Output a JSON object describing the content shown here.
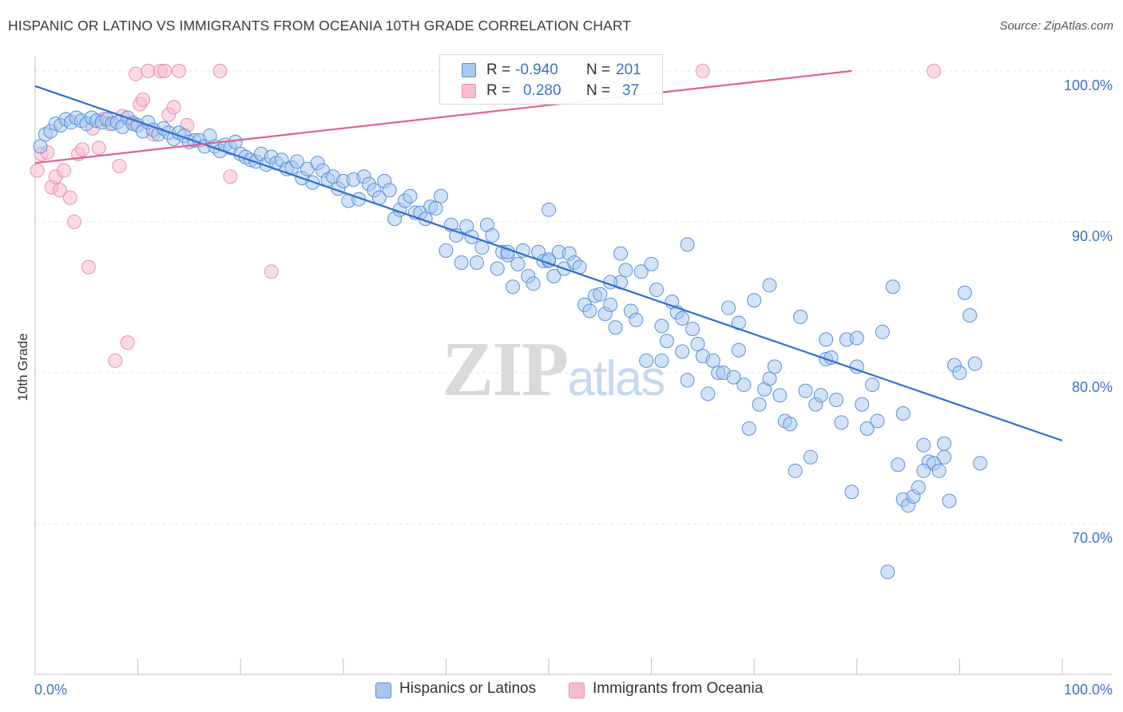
{
  "header": {
    "title": "HISPANIC OR LATINO VS IMMIGRANTS FROM OCEANIA 10TH GRADE CORRELATION CHART",
    "source": "Source: ZipAtlas.com"
  },
  "watermark": {
    "zip": "ZIP",
    "atlas": "atlas"
  },
  "legend": {
    "rows": [
      {
        "r_label": "R =",
        "r_value": "-0.940",
        "n_label": "N =",
        "n_value": "201",
        "color": "#a8c8f0"
      },
      {
        "r_label": "R =",
        "r_value": "0.280",
        "n_label": "N =",
        "n_value": "37",
        "color": "#f8bcd0"
      }
    ]
  },
  "bottom_legend": {
    "series1": "Hispanics or Latinos",
    "series2": "Immigrants from Oceania"
  },
  "colors": {
    "blue_fill": "#a8c8f0",
    "blue_stroke": "#5a90d8",
    "blue_line": "#2f6fd0",
    "pink_fill": "#f8bcd0",
    "pink_stroke": "#e890b0",
    "pink_line": "#e0628e",
    "axis_text": "#3b72c4",
    "grid": "#e6e6e6"
  },
  "chart_data": {
    "type": "scatter",
    "title": "HISPANIC OR LATINO VS IMMIGRANTS FROM OCEANIA 10TH GRADE CORRELATION CHART",
    "xlabel": "",
    "ylabel": "10th Grade",
    "xlim": [
      0,
      100
    ],
    "ylim": [
      60,
      101
    ],
    "x_tick_labels": [
      "0.0%",
      "100.0%"
    ],
    "y_ticks": [
      70,
      80,
      90,
      100
    ],
    "y_tick_labels": [
      "70.0%",
      "80.0%",
      "90.0%",
      "100.0%"
    ],
    "grid": "on",
    "legend_position": "top-center",
    "series": [
      {
        "name": "Hispanics or Latinos",
        "r": -0.94,
        "n": 201,
        "trend": {
          "x": [
            0,
            100
          ],
          "y": [
            99.0,
            75.5
          ]
        },
        "points": [
          [
            0.5,
            95.0
          ],
          [
            1.0,
            95.8
          ],
          [
            1.5,
            96.0
          ],
          [
            2.0,
            96.5
          ],
          [
            2.5,
            96.4
          ],
          [
            3.0,
            96.8
          ],
          [
            3.5,
            96.6
          ],
          [
            4.0,
            96.9
          ],
          [
            4.5,
            96.7
          ],
          [
            5.0,
            96.5
          ],
          [
            5.5,
            96.9
          ],
          [
            6.0,
            96.7
          ],
          [
            6.5,
            96.6
          ],
          [
            7.0,
            96.8
          ],
          [
            7.5,
            96.5
          ],
          [
            8.0,
            96.6
          ],
          [
            8.5,
            96.3
          ],
          [
            9.0,
            96.9
          ],
          [
            9.5,
            96.5
          ],
          [
            10.0,
            96.4
          ],
          [
            10.5,
            96.0
          ],
          [
            11.0,
            96.6
          ],
          [
            11.5,
            96.1
          ],
          [
            12.0,
            95.8
          ],
          [
            12.5,
            96.2
          ],
          [
            13.0,
            95.9
          ],
          [
            13.5,
            95.5
          ],
          [
            14.0,
            95.9
          ],
          [
            14.5,
            95.7
          ],
          [
            15.0,
            95.3
          ],
          [
            15.5,
            95.4
          ],
          [
            16.0,
            95.4
          ],
          [
            16.5,
            95.0
          ],
          [
            17.0,
            95.7
          ],
          [
            17.5,
            95.0
          ],
          [
            18.0,
            94.7
          ],
          [
            18.5,
            95.1
          ],
          [
            19.0,
            94.9
          ],
          [
            19.5,
            95.3
          ],
          [
            20.0,
            94.5
          ],
          [
            20.5,
            94.3
          ],
          [
            21.0,
            94.1
          ],
          [
            21.5,
            94.0
          ],
          [
            22.0,
            94.5
          ],
          [
            22.5,
            93.8
          ],
          [
            23.0,
            94.3
          ],
          [
            23.5,
            93.9
          ],
          [
            24.0,
            94.1
          ],
          [
            24.5,
            93.5
          ],
          [
            25.0,
            93.6
          ],
          [
            25.5,
            94.0
          ],
          [
            26.0,
            92.9
          ],
          [
            26.5,
            93.5
          ],
          [
            27.0,
            92.6
          ],
          [
            27.5,
            93.9
          ],
          [
            28.0,
            93.4
          ],
          [
            28.5,
            92.8
          ],
          [
            29.0,
            93.0
          ],
          [
            29.5,
            92.2
          ],
          [
            30.0,
            92.7
          ],
          [
            30.5,
            91.4
          ],
          [
            31.0,
            92.8
          ],
          [
            31.5,
            91.5
          ],
          [
            32.0,
            93.0
          ],
          [
            32.5,
            92.5
          ],
          [
            33.0,
            92.1
          ],
          [
            33.5,
            91.6
          ],
          [
            34.0,
            92.7
          ],
          [
            34.5,
            92.1
          ],
          [
            35.0,
            90.2
          ],
          [
            35.5,
            90.8
          ],
          [
            36.0,
            91.4
          ],
          [
            36.5,
            91.7
          ],
          [
            37.0,
            90.6
          ],
          [
            37.5,
            90.6
          ],
          [
            38.0,
            90.2
          ],
          [
            38.5,
            91.0
          ],
          [
            39.0,
            90.9
          ],
          [
            39.5,
            91.7
          ],
          [
            40.0,
            88.1
          ],
          [
            40.5,
            89.8
          ],
          [
            41.0,
            89.1
          ],
          [
            41.5,
            87.3
          ],
          [
            42.0,
            89.7
          ],
          [
            42.5,
            89.0
          ],
          [
            43.0,
            87.3
          ],
          [
            43.5,
            88.3
          ],
          [
            44.0,
            89.8
          ],
          [
            44.5,
            89.1
          ],
          [
            45.0,
            86.9
          ],
          [
            45.5,
            88.0
          ],
          [
            46.0,
            87.8
          ],
          [
            46.5,
            85.7
          ],
          [
            47.0,
            87.2
          ],
          [
            47.5,
            88.1
          ],
          [
            48.0,
            86.4
          ],
          [
            48.5,
            85.9
          ],
          [
            49.0,
            88.0
          ],
          [
            49.5,
            87.4
          ],
          [
            50.0,
            87.4
          ],
          [
            50.5,
            86.4
          ],
          [
            51.0,
            88.0
          ],
          [
            51.5,
            86.9
          ],
          [
            52.0,
            87.9
          ],
          [
            52.5,
            87.3
          ],
          [
            53.0,
            87.0
          ],
          [
            53.5,
            84.5
          ],
          [
            54.0,
            84.1
          ],
          [
            54.5,
            85.1
          ],
          [
            55.0,
            85.2
          ],
          [
            55.5,
            83.9
          ],
          [
            56.0,
            84.5
          ],
          [
            56.5,
            83.0
          ],
          [
            57.0,
            86.0
          ],
          [
            57.5,
            86.8
          ],
          [
            58.0,
            84.1
          ],
          [
            58.5,
            83.5
          ],
          [
            59.0,
            86.7
          ],
          [
            59.5,
            80.8
          ],
          [
            60.0,
            87.2
          ],
          [
            60.5,
            85.5
          ],
          [
            61.0,
            83.1
          ],
          [
            61.5,
            82.1
          ],
          [
            62.0,
            84.7
          ],
          [
            62.5,
            84.0
          ],
          [
            63.0,
            81.4
          ],
          [
            63.5,
            79.5
          ],
          [
            64.0,
            82.9
          ],
          [
            64.5,
            81.9
          ],
          [
            65.0,
            81.1
          ],
          [
            65.5,
            78.6
          ],
          [
            66.0,
            80.8
          ],
          [
            66.5,
            80.0
          ],
          [
            67.0,
            80.0
          ],
          [
            67.5,
            84.3
          ],
          [
            68.0,
            79.7
          ],
          [
            68.5,
            81.5
          ],
          [
            69.0,
            79.2
          ],
          [
            69.5,
            76.3
          ],
          [
            70.0,
            84.8
          ],
          [
            70.5,
            77.9
          ],
          [
            71.0,
            78.9
          ],
          [
            71.5,
            79.6
          ],
          [
            72.0,
            80.4
          ],
          [
            72.5,
            78.5
          ],
          [
            73.0,
            76.8
          ],
          [
            73.5,
            76.6
          ],
          [
            74.0,
            73.5
          ],
          [
            74.5,
            83.7
          ],
          [
            75.0,
            78.8
          ],
          [
            75.5,
            74.4
          ],
          [
            76.0,
            77.9
          ],
          [
            76.5,
            78.5
          ],
          [
            77.0,
            80.9
          ],
          [
            77.5,
            81.0
          ],
          [
            78.0,
            78.2
          ],
          [
            78.5,
            76.7
          ],
          [
            79.0,
            82.2
          ],
          [
            79.5,
            72.1
          ],
          [
            80.0,
            80.4
          ],
          [
            80.5,
            77.9
          ],
          [
            81.0,
            76.3
          ],
          [
            81.5,
            79.2
          ],
          [
            82.0,
            76.8
          ],
          [
            82.5,
            82.7
          ],
          [
            83.0,
            66.8
          ],
          [
            83.5,
            85.7
          ],
          [
            84.0,
            73.9
          ],
          [
            84.5,
            71.6
          ],
          [
            85.0,
            71.2
          ],
          [
            85.5,
            71.8
          ],
          [
            86.0,
            72.4
          ],
          [
            86.5,
            75.2
          ],
          [
            87.0,
            74.1
          ],
          [
            87.5,
            74.0
          ],
          [
            88.0,
            73.5
          ],
          [
            88.5,
            74.4
          ],
          [
            89.0,
            71.5
          ],
          [
            89.5,
            80.5
          ],
          [
            90.0,
            80.0
          ],
          [
            90.5,
            85.3
          ],
          [
            91.0,
            83.8
          ],
          [
            91.5,
            80.6
          ],
          [
            92.0,
            74.0
          ],
          [
            57.0,
            87.9
          ],
          [
            46.0,
            88.0
          ],
          [
            50.0,
            87.5
          ],
          [
            63.5,
            88.5
          ],
          [
            50.0,
            90.8
          ],
          [
            68.5,
            83.3
          ],
          [
            61.0,
            80.8
          ],
          [
            71.5,
            85.8
          ],
          [
            77.0,
            82.2
          ],
          [
            80.0,
            82.3
          ],
          [
            84.5,
            77.3
          ],
          [
            88.5,
            75.3
          ],
          [
            63.0,
            83.6
          ],
          [
            86.5,
            73.5
          ],
          [
            56.0,
            86.0
          ]
        ]
      },
      {
        "name": "Immigrants from Oceania",
        "r": 0.28,
        "n": 37,
        "trend": {
          "x": [
            0,
            79.5
          ],
          "y": [
            93.9,
            100.0
          ]
        },
        "points": [
          [
            0.2,
            93.4
          ],
          [
            0.6,
            94.5
          ],
          [
            1.2,
            94.6
          ],
          [
            1.6,
            92.3
          ],
          [
            2.0,
            93.0
          ],
          [
            2.4,
            92.1
          ],
          [
            2.8,
            93.4
          ],
          [
            3.4,
            91.6
          ],
          [
            3.8,
            90.0
          ],
          [
            4.2,
            94.5
          ],
          [
            4.6,
            94.8
          ],
          [
            5.2,
            87.0
          ],
          [
            5.6,
            96.2
          ],
          [
            6.2,
            94.9
          ],
          [
            6.6,
            96.8
          ],
          [
            7.2,
            96.5
          ],
          [
            7.8,
            80.8
          ],
          [
            8.2,
            93.7
          ],
          [
            8.5,
            97.0
          ],
          [
            9.0,
            82.0
          ],
          [
            9.5,
            96.6
          ],
          [
            9.8,
            99.8
          ],
          [
            10.2,
            97.8
          ],
          [
            10.5,
            98.1
          ],
          [
            11.0,
            100.0
          ],
          [
            11.5,
            95.8
          ],
          [
            12.2,
            100.0
          ],
          [
            12.6,
            100.0
          ],
          [
            13.0,
            97.1
          ],
          [
            13.5,
            97.6
          ],
          [
            14.0,
            100.0
          ],
          [
            14.8,
            96.4
          ],
          [
            18.0,
            100.0
          ],
          [
            19.0,
            93.0
          ],
          [
            23.0,
            86.7
          ],
          [
            65.0,
            100.0
          ],
          [
            87.5,
            100.0
          ]
        ]
      }
    ]
  }
}
